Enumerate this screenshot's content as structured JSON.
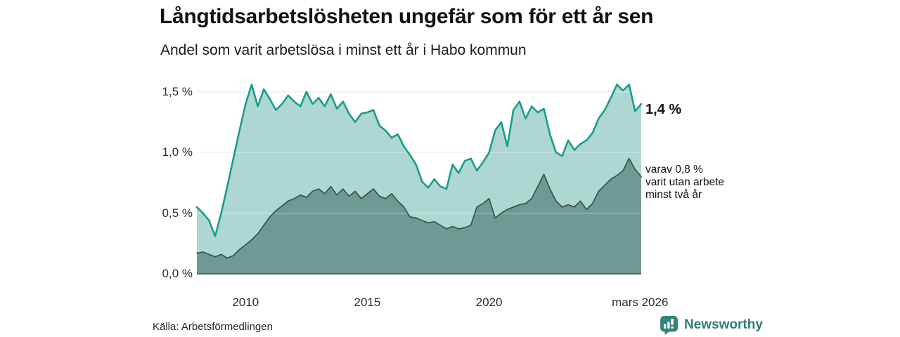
{
  "header": {
    "title": "Långtidsarbetslösheten ungefär som för ett år sen",
    "subtitle": "Andel som varit arbetslösa i minst ett år i Habo kommun"
  },
  "annotations": {
    "total_label": "1,4 %",
    "breakdown_lines": [
      "varav 0,8 %",
      "varit utan arbete",
      "minst två år"
    ]
  },
  "footer": {
    "source": "Källa: Arbetsförmedlingen",
    "logo_text": "Newsworthy"
  },
  "colors": {
    "upper_line": "#1a9c8c",
    "upper_fill": "#aed7d1",
    "lower_line": "#3d4f4b",
    "lower_fill": "#6f9a93",
    "grid": "#dddde2",
    "grid_overlay": "rgba(255,255,255,0.45)",
    "baseline": "#3f4c49",
    "logo_teal": "#35847c",
    "logo_text_teal": "#2c7e77"
  },
  "chart_data": {
    "type": "area",
    "title": "Långtidsarbetslösheten ungefär som för ett år sen",
    "subtitle": "Andel som varit arbetslösa i minst ett år i Habo kommun",
    "xlabel": "",
    "ylabel": "",
    "xlim": [
      2008,
      2026.25
    ],
    "ylim": [
      0,
      1.62
    ],
    "grid": true,
    "legend_position": "right-annotations",
    "x": [
      2008,
      2008.25,
      2008.5,
      2008.75,
      2009,
      2009.25,
      2009.5,
      2009.75,
      2010,
      2010.25,
      2010.5,
      2010.75,
      2011,
      2011.25,
      2011.5,
      2011.75,
      2012,
      2012.25,
      2012.5,
      2012.75,
      2013,
      2013.25,
      2013.5,
      2013.75,
      2014,
      2014.25,
      2014.5,
      2014.75,
      2015,
      2015.25,
      2015.5,
      2015.75,
      2016,
      2016.25,
      2016.5,
      2016.75,
      2017,
      2017.25,
      2017.5,
      2017.75,
      2018,
      2018.25,
      2018.5,
      2018.75,
      2019,
      2019.25,
      2019.5,
      2019.75,
      2020,
      2020.25,
      2020.5,
      2020.75,
      2021,
      2021.25,
      2021.5,
      2021.75,
      2022,
      2022.25,
      2022.5,
      2022.75,
      2023,
      2023.25,
      2023.5,
      2023.75,
      2024,
      2024.25,
      2024.5,
      2024.75,
      2025,
      2025.25,
      2025.5,
      2025.75,
      2026,
      2026.25
    ],
    "series": [
      {
        "name": "Andel arbetslösa minst ett år",
        "end_value_label": "1,4 %",
        "end_value": 1.4,
        "values": [
          0.55,
          0.5,
          0.44,
          0.31,
          0.5,
          0.72,
          0.95,
          1.18,
          1.4,
          1.56,
          1.38,
          1.52,
          1.44,
          1.35,
          1.4,
          1.47,
          1.42,
          1.38,
          1.5,
          1.4,
          1.45,
          1.38,
          1.48,
          1.36,
          1.42,
          1.32,
          1.25,
          1.32,
          1.33,
          1.35,
          1.22,
          1.18,
          1.12,
          1.15,
          1.05,
          0.98,
          0.9,
          0.76,
          0.71,
          0.78,
          0.72,
          0.7,
          0.9,
          0.83,
          0.93,
          0.95,
          0.85,
          0.92,
          1.0,
          1.18,
          1.25,
          1.05,
          1.35,
          1.42,
          1.28,
          1.38,
          1.33,
          1.36,
          1.15,
          1.0,
          0.97,
          1.1,
          1.02,
          1.07,
          1.1,
          1.16,
          1.28,
          1.35,
          1.45,
          1.56,
          1.51,
          1.56,
          1.34,
          1.4
        ]
      },
      {
        "name": "varav utan arbete minst två år",
        "end_value_label": "varav 0,8 %",
        "end_value": 0.8,
        "values": [
          0.17,
          0.18,
          0.16,
          0.14,
          0.16,
          0.13,
          0.15,
          0.2,
          0.24,
          0.28,
          0.33,
          0.4,
          0.47,
          0.52,
          0.56,
          0.6,
          0.62,
          0.65,
          0.63,
          0.68,
          0.7,
          0.66,
          0.72,
          0.65,
          0.7,
          0.64,
          0.68,
          0.62,
          0.66,
          0.7,
          0.64,
          0.62,
          0.66,
          0.6,
          0.55,
          0.47,
          0.46,
          0.44,
          0.42,
          0.43,
          0.4,
          0.37,
          0.39,
          0.37,
          0.38,
          0.4,
          0.55,
          0.58,
          0.62,
          0.46,
          0.5,
          0.53,
          0.55,
          0.57,
          0.58,
          0.62,
          0.72,
          0.82,
          0.7,
          0.6,
          0.55,
          0.57,
          0.55,
          0.6,
          0.53,
          0.58,
          0.68,
          0.73,
          0.78,
          0.81,
          0.85,
          0.95,
          0.86,
          0.8
        ]
      }
    ],
    "yticks": [
      {
        "value": 0,
        "label": "0,0 %"
      },
      {
        "value": 0.5,
        "label": "0,5 %"
      },
      {
        "value": 1.0,
        "label": "1,0 %"
      },
      {
        "value": 1.5,
        "label": "1,5 %"
      }
    ],
    "xticks": [
      {
        "value": 2010,
        "label": "2010"
      },
      {
        "value": 2015,
        "label": "2015"
      },
      {
        "value": 2020,
        "label": "2020"
      },
      {
        "value": 2026.2,
        "label": "mars 2026"
      }
    ]
  }
}
